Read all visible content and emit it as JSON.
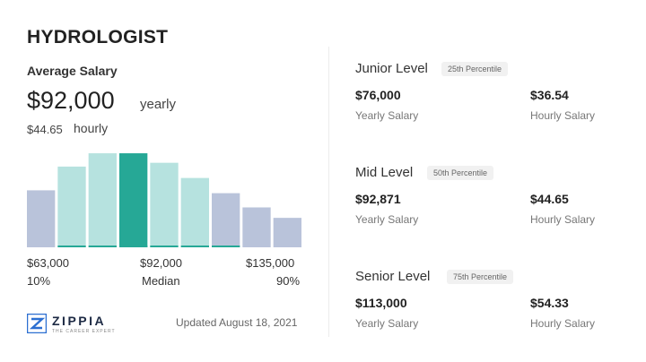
{
  "job_title": "HYDROLOGIST",
  "average": {
    "label": "Average Salary",
    "yearly_value": "$92,000",
    "yearly_label": "yearly",
    "hourly_value": "$44.65",
    "hourly_label": "hourly"
  },
  "chart_data": {
    "type": "bar",
    "title": "",
    "xlabel": "",
    "ylabel": "",
    "categories": [
      "1",
      "2",
      "3",
      "4",
      "5",
      "6",
      "7",
      "8",
      "9"
    ],
    "values": [
      60,
      85,
      99,
      99,
      89,
      73,
      57,
      42,
      31
    ],
    "ylim": [
      0,
      100
    ],
    "highlight_index": 3,
    "colors": {
      "outer": "#b9c3da",
      "inner": "#b6e2df",
      "highlight": "#26a896",
      "accent_line": "#26a896"
    },
    "tick_labels": [
      {
        "value": "$63,000",
        "sub": "10%"
      },
      {
        "value": "$92,000",
        "sub": "Median"
      },
      {
        "value": "$135,000",
        "sub": "90%"
      }
    ]
  },
  "levels": [
    {
      "name": "Junior Level",
      "percentile": "25th Percentile",
      "yearly": "$76,000",
      "yearly_label": "Yearly Salary",
      "hourly": "$36.54",
      "hourly_label": "Hourly Salary"
    },
    {
      "name": "Mid Level",
      "percentile": "50th Percentile",
      "yearly": "$92,871",
      "yearly_label": "Yearly Salary",
      "hourly": "$44.65",
      "hourly_label": "Hourly Salary"
    },
    {
      "name": "Senior Level",
      "percentile": "75th Percentile",
      "yearly": "$113,000",
      "yearly_label": "Yearly Salary",
      "hourly": "$54.33",
      "hourly_label": "Hourly Salary"
    }
  ],
  "brand": {
    "name": "ZIPPIA",
    "tagline": "THE CAREER EXPERT",
    "logo_icon": "zippia-logo-icon",
    "logo_color": "#2c6fd1"
  },
  "updated": "Updated August 18, 2021"
}
